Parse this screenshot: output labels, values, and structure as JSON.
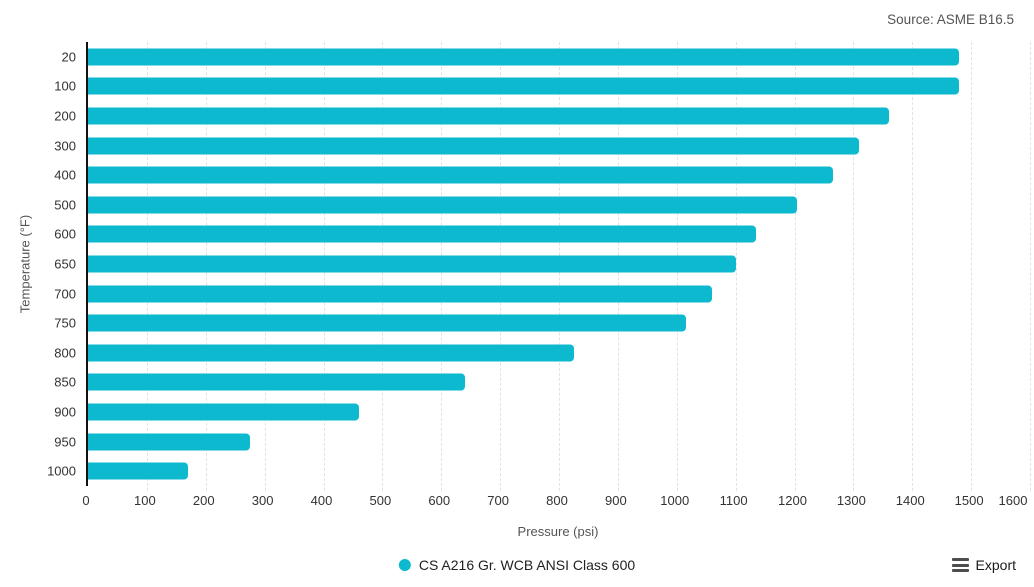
{
  "header": {
    "source": "Source: ASME B16.5"
  },
  "chart_data": {
    "type": "bar",
    "orientation": "horizontal",
    "title": "",
    "xlabel": "Pressure (psi)",
    "ylabel": "Temperature (°F)",
    "xlim": [
      0,
      1600
    ],
    "xticks": [
      0,
      100,
      200,
      300,
      400,
      500,
      600,
      700,
      800,
      900,
      1000,
      1100,
      1200,
      1300,
      1400,
      1500,
      1600
    ],
    "grid": "vertical-dashed",
    "legend_position": "bottom-center",
    "categories": [
      "20",
      "100",
      "200",
      "300",
      "400",
      "500",
      "600",
      "650",
      "700",
      "750",
      "800",
      "850",
      "900",
      "950",
      "1000"
    ],
    "series": [
      {
        "name": "CS A216 Gr. WCB ANSI Class 600",
        "color": "#0db9ce",
        "values": [
          1480,
          1480,
          1360,
          1310,
          1265,
          1205,
          1135,
          1100,
          1060,
          1015,
          825,
          640,
          460,
          275,
          170
        ]
      }
    ]
  },
  "footer": {
    "export_label": "Export"
  },
  "colors": {
    "bar": "#0db9ce",
    "gridline": "#e2e2e2",
    "axis": "#111111",
    "tick_text": "#333333",
    "muted_text": "#555555"
  }
}
